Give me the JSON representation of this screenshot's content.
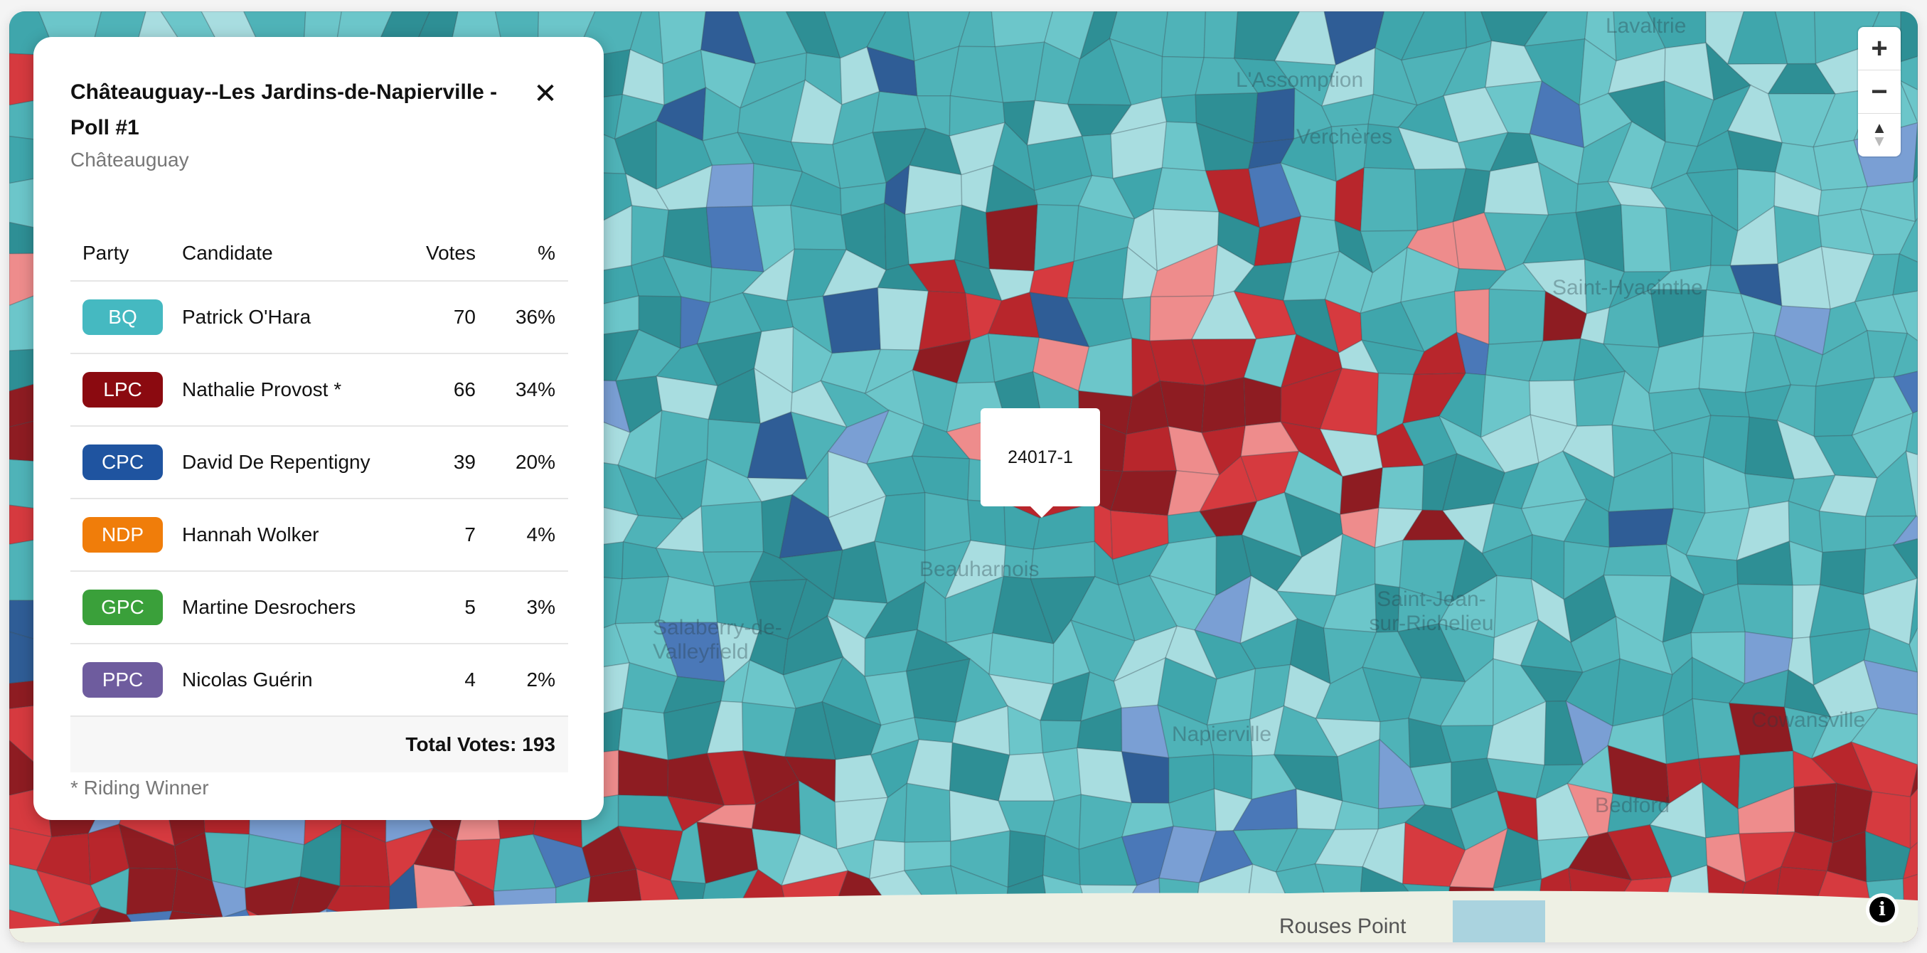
{
  "map": {
    "place_labels": [
      "Lavaltrie",
      "L'Assomption",
      "Saint-Hyacinthe",
      "Saint-Jean-sur-Richelieu",
      "Napierville",
      "Beauharnois",
      "Salaberry-de-Valleyfield",
      "Bedford",
      "Cowansville",
      "Verchères"
    ],
    "basemap_label": "Rouses Point",
    "colors": {
      "bq_strong": "#2e8f95",
      "bq": "#4fb3b8",
      "bq_light": "#a8dde0",
      "lpc_strong": "#8e1c22",
      "lpc": "#d63a3f",
      "lpc_light": "#ee8c8c",
      "cpc": "#2f5d96",
      "cpc_light": "#7a9fd4"
    },
    "hover_popup": "24017-1"
  },
  "controls": {
    "zoom_in": "+",
    "zoom_out": "−",
    "compass": "▲",
    "info": "i"
  },
  "panel": {
    "title": "Châteauguay--Les Jardins-de-Napierville - Poll #1",
    "subtitle": "Châteauguay",
    "close": "✕",
    "headers": {
      "party": "Party",
      "candidate": "Candidate",
      "votes": "Votes",
      "pct": "%"
    },
    "rows": [
      {
        "party": "BQ",
        "color": "#45b9c1",
        "candidate": "Patrick O'Hara",
        "votes": "70",
        "pct": "36%"
      },
      {
        "party": "LPC",
        "color": "#8b0a10",
        "candidate": "Nathalie Provost *",
        "votes": "66",
        "pct": "34%"
      },
      {
        "party": "CPC",
        "color": "#1f54a0",
        "candidate": "David De Repentigny",
        "votes": "39",
        "pct": "20%"
      },
      {
        "party": "NDP",
        "color": "#f07d0a",
        "candidate": "Hannah Wolker",
        "votes": "7",
        "pct": "4%"
      },
      {
        "party": "GPC",
        "color": "#3aa03a",
        "candidate": "Martine Desrochers",
        "votes": "5",
        "pct": "3%"
      },
      {
        "party": "PPC",
        "color": "#6e5c9e",
        "candidate": "Nicolas Guérin",
        "votes": "4",
        "pct": "2%"
      }
    ],
    "total": "Total Votes: 193",
    "footnote": "* Riding Winner"
  }
}
